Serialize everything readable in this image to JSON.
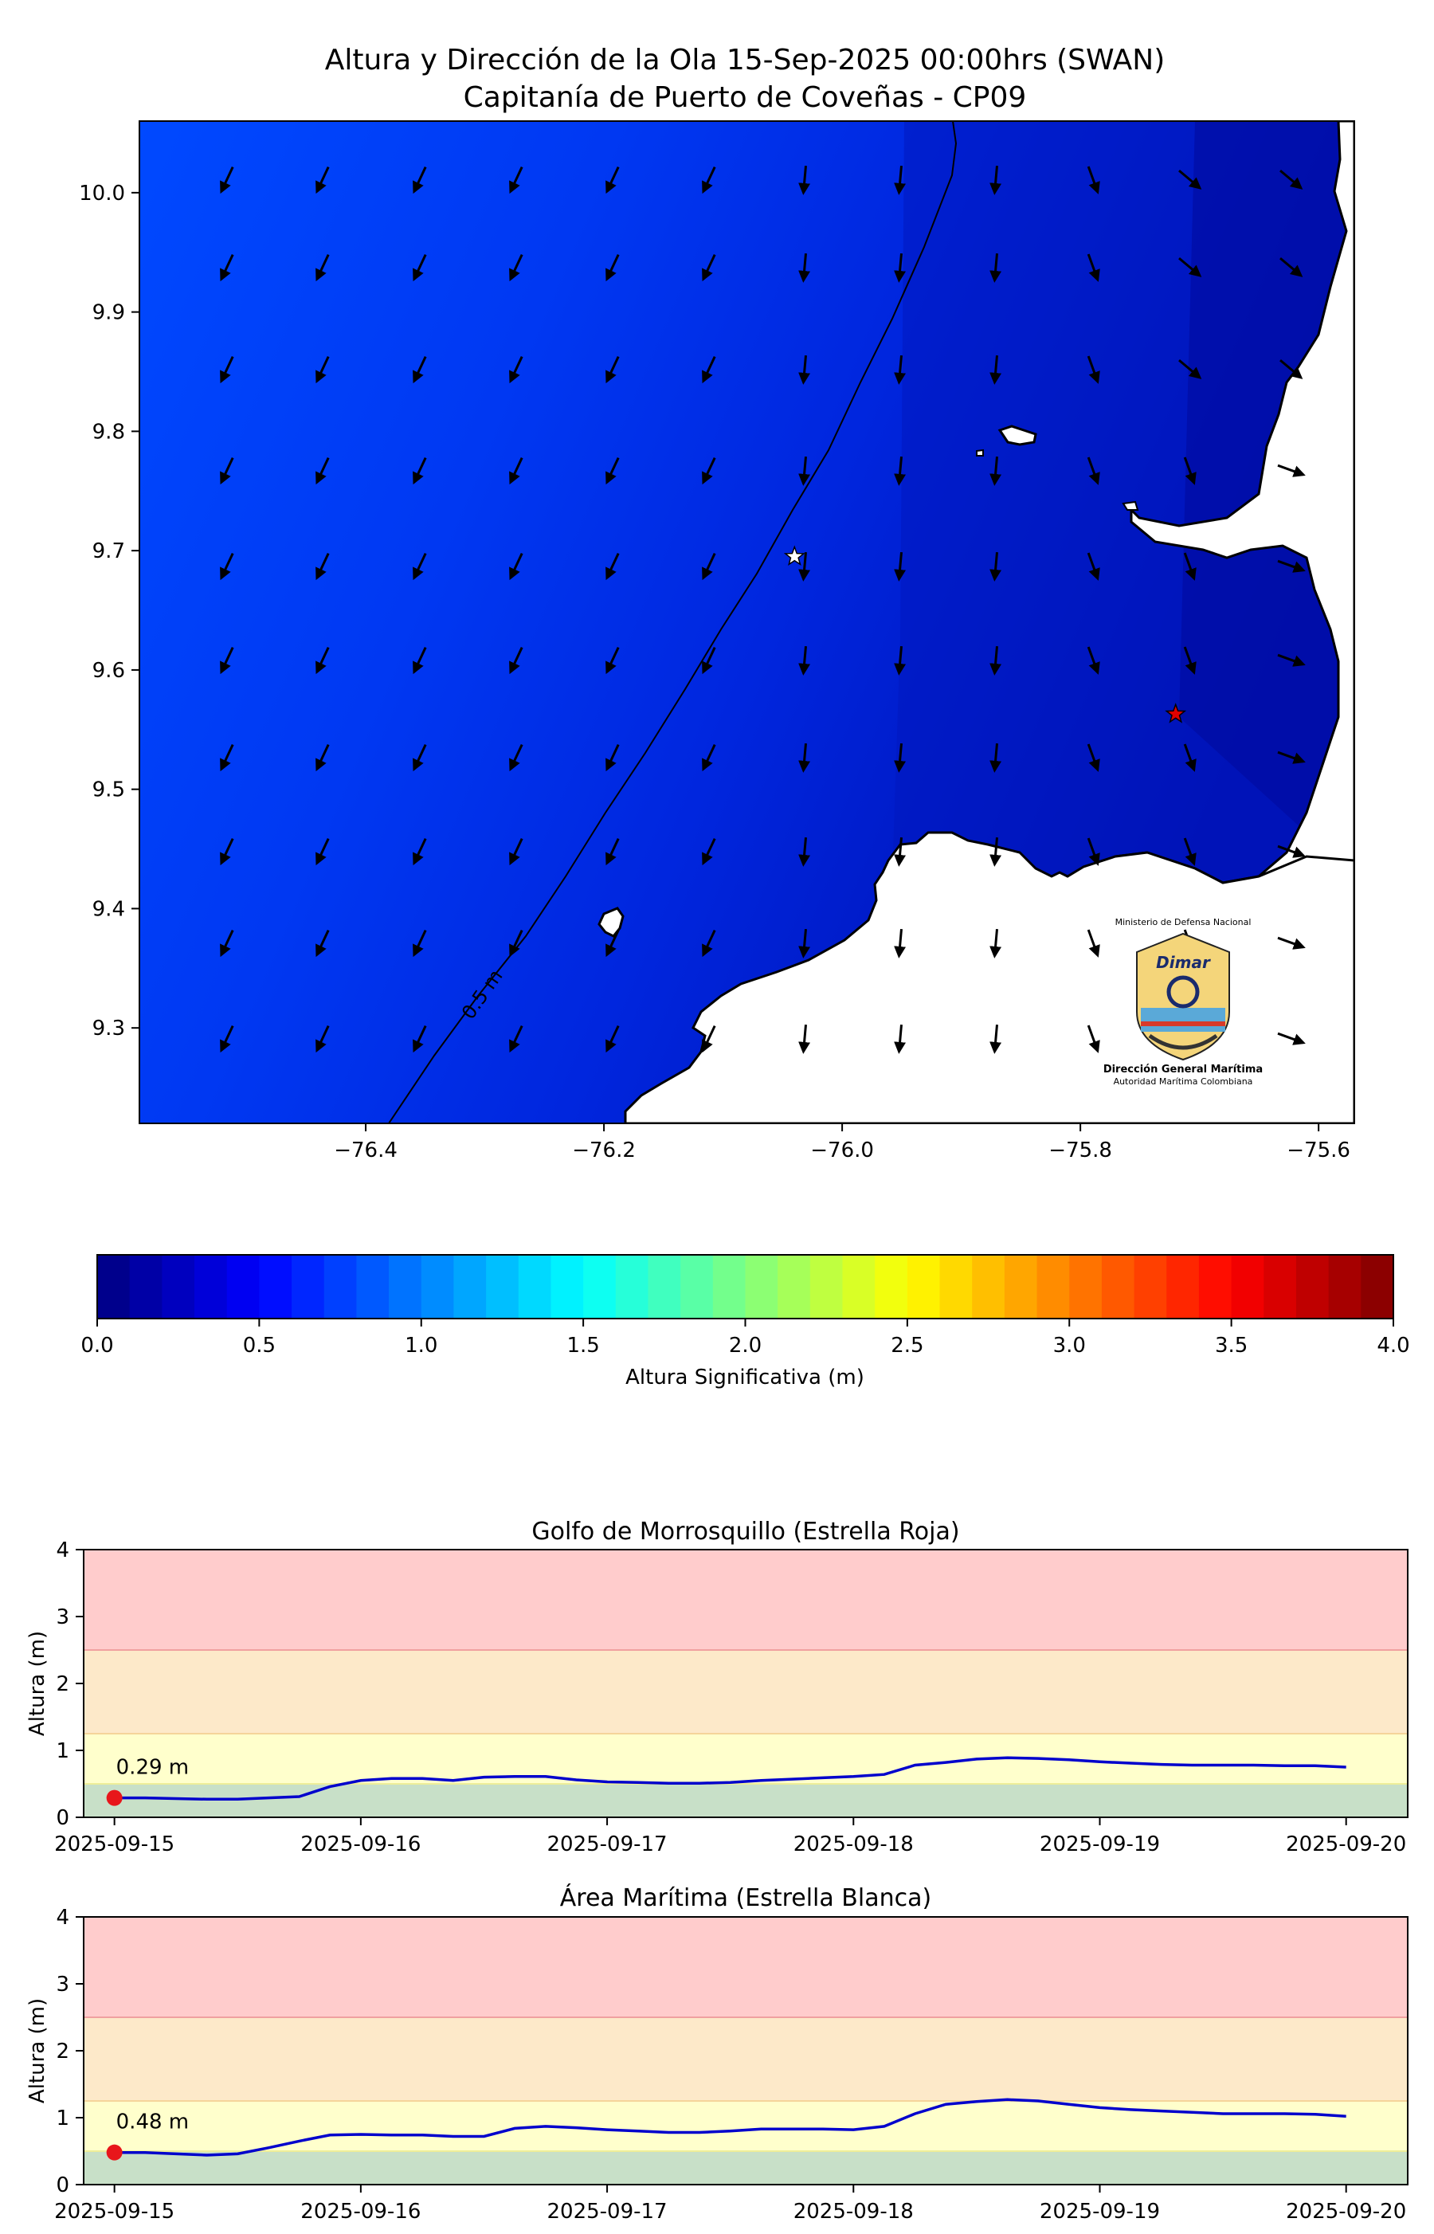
{
  "map": {
    "title_line1": "Altura y Dirección de la Ola 15-Sep-2025 00:00hrs (SWAN)",
    "title_line2": "Capitanía de Puerto de Coveñas - CP09",
    "x_ticks": [
      "−76.4",
      "−76.2",
      "−76.0",
      "−75.8",
      "−75.6"
    ],
    "x_tick_values": [
      -76.4,
      -76.2,
      -76.0,
      -75.8,
      -75.6
    ],
    "y_ticks": [
      "10.0",
      "9.9",
      "9.8",
      "9.7",
      "9.6",
      "9.5",
      "9.4",
      "9.3"
    ],
    "y_tick_values": [
      10.0,
      9.9,
      9.8,
      9.7,
      9.6,
      9.5,
      9.4,
      9.3
    ],
    "xlim": [
      -76.59,
      -75.57
    ],
    "ylim": [
      9.22,
      10.06
    ],
    "contour_label": "0.5 m",
    "markers": [
      {
        "name": "Estrella Blanca",
        "lon": -76.04,
        "lat": 9.695,
        "color": "#ffffff"
      },
      {
        "name": "Estrella Roja",
        "lon": -75.72,
        "lat": 9.563,
        "color": "#e00000"
      }
    ],
    "logo": {
      "ministry": "Ministerio de Defensa Nacional",
      "brand": "Dimar",
      "org": "Dirección General Marítima",
      "tagline": "Autoridad Marítima Colombiana"
    }
  },
  "colorbar": {
    "label": "Altura Significativa (m)",
    "min": 0.0,
    "max": 4.0,
    "ticks": [
      "0.0",
      "0.5",
      "1.0",
      "1.5",
      "2.0",
      "2.5",
      "3.0",
      "3.5",
      "4.0"
    ],
    "colormap": "jet"
  },
  "chart_data": [
    {
      "type": "line",
      "title": "Golfo de Morrosquillo (Estrella Roja)",
      "ylabel": "Altura (m)",
      "ylim": [
        0,
        4
      ],
      "xlim": [
        "2025-09-14T21:00",
        "2025-09-20T06:00"
      ],
      "y_ticks": [
        "0",
        "1",
        "2",
        "3",
        "4"
      ],
      "x_ticks": [
        "2025-09-15",
        "2025-09-16",
        "2025-09-17",
        "2025-09-18",
        "2025-09-19",
        "2025-09-20"
      ],
      "bands": [
        {
          "from": 0,
          "to": 0.5,
          "color": "#c8e0c8"
        },
        {
          "from": 0.5,
          "to": 1.25,
          "color": "#ffffcc"
        },
        {
          "from": 1.25,
          "to": 2.5,
          "color": "#fde9c9"
        },
        {
          "from": 2.5,
          "to": 4,
          "color": "#ffcccc"
        }
      ],
      "series": [
        {
          "color": "#0000cc",
          "x": [
            "2025-09-15T00:00",
            "2025-09-15T03:00",
            "2025-09-15T06:00",
            "2025-09-15T09:00",
            "2025-09-15T12:00",
            "2025-09-15T15:00",
            "2025-09-15T18:00",
            "2025-09-15T21:00",
            "2025-09-16T00:00",
            "2025-09-16T03:00",
            "2025-09-16T06:00",
            "2025-09-16T09:00",
            "2025-09-16T12:00",
            "2025-09-16T15:00",
            "2025-09-16T18:00",
            "2025-09-16T21:00",
            "2025-09-17T00:00",
            "2025-09-17T03:00",
            "2025-09-17T06:00",
            "2025-09-17T09:00",
            "2025-09-17T12:00",
            "2025-09-17T15:00",
            "2025-09-17T18:00",
            "2025-09-17T21:00",
            "2025-09-18T00:00",
            "2025-09-18T03:00",
            "2025-09-18T06:00",
            "2025-09-18T09:00",
            "2025-09-18T12:00",
            "2025-09-18T15:00",
            "2025-09-18T18:00",
            "2025-09-18T21:00",
            "2025-09-19T00:00",
            "2025-09-19T03:00",
            "2025-09-19T06:00",
            "2025-09-19T09:00",
            "2025-09-19T12:00",
            "2025-09-19T15:00",
            "2025-09-19T18:00",
            "2025-09-19T21:00",
            "2025-09-20T00:00"
          ],
          "values": [
            0.29,
            0.29,
            0.28,
            0.27,
            0.27,
            0.29,
            0.31,
            0.46,
            0.55,
            0.58,
            0.58,
            0.55,
            0.6,
            0.61,
            0.61,
            0.56,
            0.53,
            0.52,
            0.51,
            0.51,
            0.52,
            0.55,
            0.57,
            0.59,
            0.61,
            0.64,
            0.78,
            0.82,
            0.87,
            0.89,
            0.88,
            0.86,
            0.83,
            0.81,
            0.79,
            0.78,
            0.78,
            0.78,
            0.77,
            0.77,
            0.75
          ]
        }
      ],
      "first_point_label": "0.29 m"
    },
    {
      "type": "line",
      "title": "Área Marítima (Estrella Blanca)",
      "ylabel": "Altura (m)",
      "ylim": [
        0,
        4
      ],
      "xlim": [
        "2025-09-14T21:00",
        "2025-09-20T06:00"
      ],
      "y_ticks": [
        "0",
        "1",
        "2",
        "3",
        "4"
      ],
      "x_ticks": [
        "2025-09-15",
        "2025-09-16",
        "2025-09-17",
        "2025-09-18",
        "2025-09-19",
        "2025-09-20"
      ],
      "bands": [
        {
          "from": 0,
          "to": 0.5,
          "color": "#c8e0c8"
        },
        {
          "from": 0.5,
          "to": 1.25,
          "color": "#ffffcc"
        },
        {
          "from": 1.25,
          "to": 2.5,
          "color": "#fde9c9"
        },
        {
          "from": 2.5,
          "to": 4,
          "color": "#ffcccc"
        }
      ],
      "series": [
        {
          "color": "#0000cc",
          "x": [
            "2025-09-15T00:00",
            "2025-09-15T03:00",
            "2025-09-15T06:00",
            "2025-09-15T09:00",
            "2025-09-15T12:00",
            "2025-09-15T15:00",
            "2025-09-15T18:00",
            "2025-09-15T21:00",
            "2025-09-16T00:00",
            "2025-09-16T03:00",
            "2025-09-16T06:00",
            "2025-09-16T09:00",
            "2025-09-16T12:00",
            "2025-09-16T15:00",
            "2025-09-16T18:00",
            "2025-09-16T21:00",
            "2025-09-17T00:00",
            "2025-09-17T03:00",
            "2025-09-17T06:00",
            "2025-09-17T09:00",
            "2025-09-17T12:00",
            "2025-09-17T15:00",
            "2025-09-17T18:00",
            "2025-09-17T21:00",
            "2025-09-18T00:00",
            "2025-09-18T03:00",
            "2025-09-18T06:00",
            "2025-09-18T09:00",
            "2025-09-18T12:00",
            "2025-09-18T15:00",
            "2025-09-18T18:00",
            "2025-09-18T21:00",
            "2025-09-19T00:00",
            "2025-09-19T03:00",
            "2025-09-19T06:00",
            "2025-09-19T09:00",
            "2025-09-19T12:00",
            "2025-09-19T15:00",
            "2025-09-19T18:00",
            "2025-09-19T21:00",
            "2025-09-20T00:00"
          ],
          "values": [
            0.48,
            0.48,
            0.46,
            0.44,
            0.46,
            0.55,
            0.65,
            0.74,
            0.75,
            0.74,
            0.74,
            0.72,
            0.72,
            0.84,
            0.87,
            0.85,
            0.82,
            0.8,
            0.78,
            0.78,
            0.8,
            0.83,
            0.83,
            0.83,
            0.82,
            0.87,
            1.06,
            1.2,
            1.24,
            1.27,
            1.25,
            1.2,
            1.15,
            1.12,
            1.1,
            1.08,
            1.06,
            1.06,
            1.06,
            1.05,
            1.02
          ]
        }
      ],
      "first_point_label": "0.48 m"
    }
  ]
}
